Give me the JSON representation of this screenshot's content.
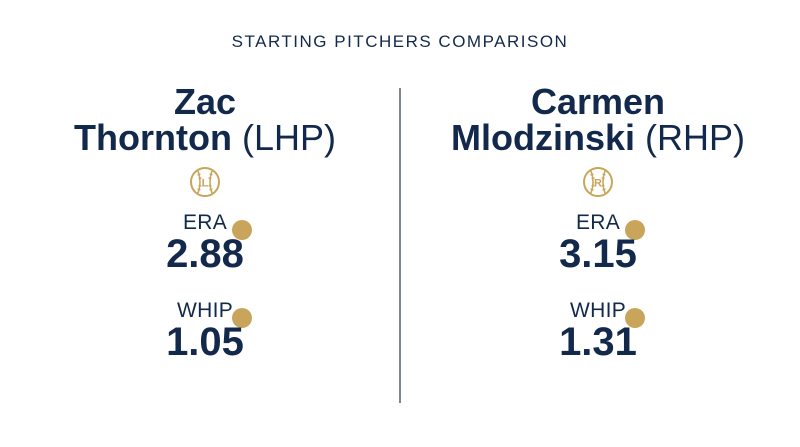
{
  "header": {
    "title": "STARTING PITCHERS COMPARISON"
  },
  "pitchers": [
    {
      "first_name": "Zac",
      "last_name": "Thornton",
      "hand": "(LHP)",
      "ball_letter": "L",
      "era_label": "ERA",
      "era": "2.88",
      "whip_label": "WHIP",
      "whip": "1.05"
    },
    {
      "first_name": "Carmen",
      "last_name": "Mlodzinski",
      "hand": "(RHP)",
      "ball_letter": "R",
      "era_label": "ERA",
      "era": "3.15",
      "whip_label": "WHIP",
      "whip": "1.31"
    }
  ],
  "colors": {
    "navy": "#13294b",
    "gold": "#c9a55c",
    "divider": "#7d8593"
  },
  "icons": {
    "ball": "baseball-icon"
  }
}
